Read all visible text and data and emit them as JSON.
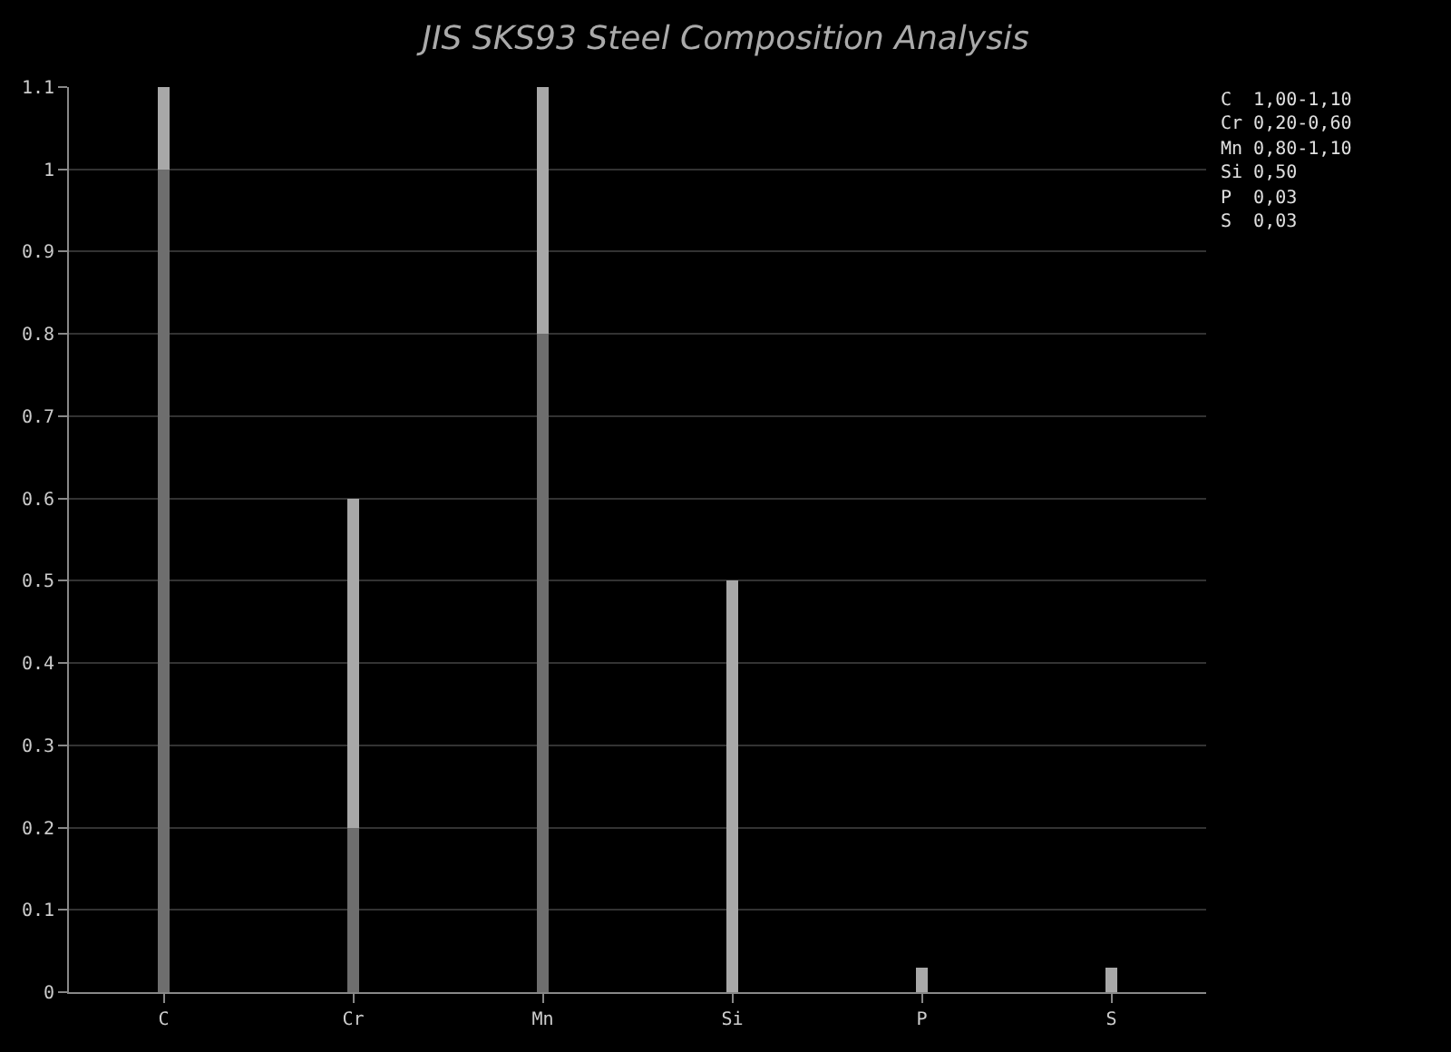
{
  "chart_data": {
    "type": "bar",
    "title": "JIS SKS93 Steel Composition Analysis",
    "categories": [
      "C",
      "Cr",
      "Mn",
      "Si",
      "P",
      "S"
    ],
    "stacked": true,
    "series": [
      {
        "color": "#6e6e6e",
        "values": [
          1.0,
          0.2,
          0.8,
          null,
          null,
          null
        ]
      },
      {
        "color": "#a8a8a8",
        "values": [
          0.1,
          0.4,
          0.3,
          0.5,
          0.03,
          0.03
        ]
      }
    ],
    "ylim": [
      0,
      1.1
    ],
    "yticks": [
      0,
      0.1,
      0.2,
      0.3,
      0.4,
      0.5,
      0.6,
      0.7,
      0.8,
      0.9,
      1,
      1.1
    ],
    "grid": "y",
    "annotations": [
      "C  1,00-1,10",
      "Cr 0,20-0,60",
      "Mn 0,80-1,10",
      "Si 0,50",
      "P  0,03",
      "S  0,03"
    ]
  }
}
